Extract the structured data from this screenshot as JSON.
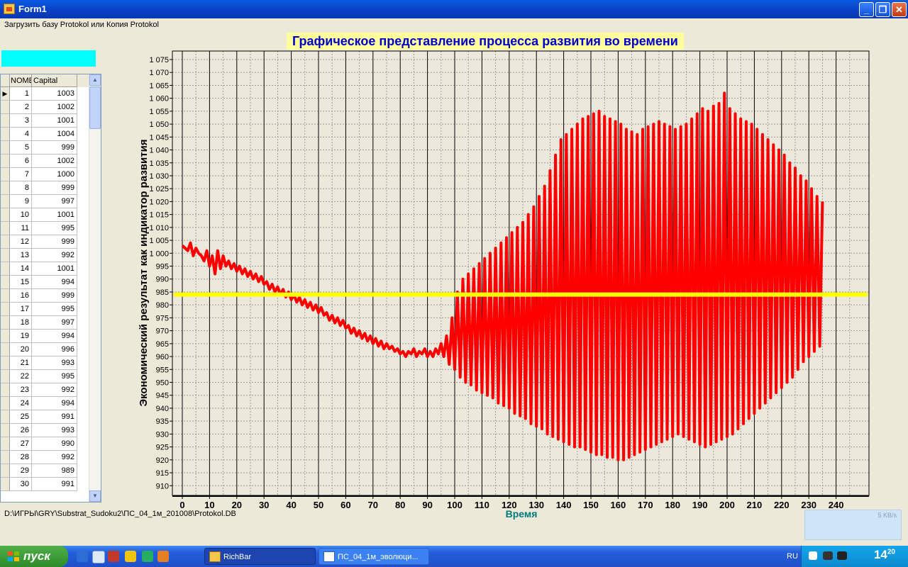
{
  "window": {
    "title": "Form1"
  },
  "menu": {
    "load": "Загрузить базу Protokol или Копия Protokol"
  },
  "grid": {
    "col_num": "NOME",
    "col_capital": "Capital",
    "rows": [
      [
        "1",
        "1003"
      ],
      [
        "2",
        "1002"
      ],
      [
        "3",
        "1001"
      ],
      [
        "4",
        "1004"
      ],
      [
        "5",
        "999"
      ],
      [
        "6",
        "1002"
      ],
      [
        "7",
        "1000"
      ],
      [
        "8",
        "999"
      ],
      [
        "9",
        "997"
      ],
      [
        "10",
        "1001"
      ],
      [
        "11",
        "995"
      ],
      [
        "12",
        "999"
      ],
      [
        "13",
        "992"
      ],
      [
        "14",
        "1001"
      ],
      [
        "15",
        "994"
      ],
      [
        "16",
        "999"
      ],
      [
        "17",
        "995"
      ],
      [
        "18",
        "997"
      ],
      [
        "19",
        "994"
      ],
      [
        "20",
        "996"
      ],
      [
        "21",
        "993"
      ],
      [
        "22",
        "995"
      ],
      [
        "23",
        "992"
      ],
      [
        "24",
        "994"
      ],
      [
        "25",
        "991"
      ],
      [
        "26",
        "993"
      ],
      [
        "27",
        "990"
      ],
      [
        "28",
        "992"
      ],
      [
        "29",
        "989"
      ],
      [
        "30",
        "991"
      ]
    ]
  },
  "path": "D:\\ИГРЫ\\GRY\\Substrat_Sudoku2\\ПС_04_1м_201008\\Protokol.DB",
  "netmon": "5 KB/s",
  "chart_data": {
    "type": "line",
    "title": "Графическое представление процесса развития во времени",
    "xlabel": "Время",
    "ylabel": "Экономический результат как индикатор развития",
    "xlim": [
      0,
      249
    ],
    "ylim": [
      908,
      1077
    ],
    "x_ticks": [
      "0",
      "10",
      "20",
      "30",
      "40",
      "50",
      "60",
      "70",
      "80",
      "90",
      "100",
      "110",
      "120",
      "130",
      "140",
      "150",
      "160",
      "170",
      "180",
      "190",
      "200",
      "210",
      "220",
      "230",
      "240"
    ],
    "y_ticks": [
      "1 075",
      "1 070",
      "1 065",
      "1 060",
      "1 055",
      "1 050",
      "1 045",
      "1 040",
      "1 035",
      "1 030",
      "1 025",
      "1 020",
      "1 015",
      "1 010",
      "1 005",
      "1 000",
      "995",
      "990",
      "985",
      "980",
      "975",
      "970",
      "965",
      "960",
      "955",
      "950",
      "945",
      "940",
      "935",
      "930",
      "925",
      "920",
      "915",
      "910"
    ],
    "grid": true,
    "series": [
      {
        "color": "#ff0000",
        "values": [
          1003,
          1002,
          1001,
          1004,
          999,
          1002,
          1000,
          999,
          997,
          1001,
          995,
          999,
          992,
          1001,
          994,
          999,
          995,
          997,
          994,
          996,
          993,
          995,
          992,
          994,
          991,
          993,
          990,
          992,
          989,
          991,
          988,
          989,
          986,
          988,
          985,
          987,
          984,
          986,
          983,
          985,
          982,
          984,
          981,
          983,
          980,
          982,
          979,
          981,
          978,
          980,
          977,
          979,
          976,
          977,
          974,
          976,
          973,
          975,
          972,
          974,
          971,
          972,
          969,
          971,
          968,
          970,
          967,
          969,
          966,
          968,
          965,
          967,
          964,
          966,
          963,
          965,
          963,
          964,
          962,
          963,
          961,
          962,
          960,
          962,
          961,
          963,
          960,
          962,
          961,
          963,
          960,
          962,
          960,
          963,
          961,
          965,
          960,
          968,
          957,
          975,
          955,
          985,
          952,
          990,
          950,
          992,
          949,
          994,
          947,
          996,
          946,
          998,
          945,
          1000,
          944,
          1002,
          942,
          1004,
          941,
          1006,
          940,
          1008,
          938,
          1010,
          937,
          1012,
          936,
          1015,
          934,
          1018,
          933,
          1022,
          932,
          1026,
          930,
          1032,
          929,
          1038,
          928,
          1044,
          927,
          1046,
          926,
          1048,
          925,
          1050,
          925,
          1052,
          924,
          1053,
          923,
          1054,
          922,
          1055,
          922,
          1053,
          921,
          1052,
          921,
          1051,
          920,
          1050,
          920,
          1048,
          921,
          1047,
          922,
          1046,
          923,
          1048,
          924,
          1049,
          925,
          1050,
          926,
          1051,
          927,
          1050,
          928,
          1049,
          929,
          1048,
          930,
          1049,
          929,
          1050,
          928,
          1052,
          927,
          1054,
          926,
          1056,
          925,
          1055,
          926,
          1057,
          927,
          1058,
          928,
          1062,
          929,
          1056,
          930,
          1054,
          932,
          1052,
          934,
          1051,
          936,
          1050,
          938,
          1048,
          940,
          1046,
          942,
          1044,
          944,
          1042,
          946,
          1040,
          948,
          1038,
          950,
          1035,
          952,
          1033,
          955,
          1030,
          958,
          1028,
          960,
          1025,
          962,
          1022,
          964,
          1020
        ]
      },
      {
        "color": "#ffff00",
        "values": [
          984,
          984
        ]
      }
    ]
  }
}
